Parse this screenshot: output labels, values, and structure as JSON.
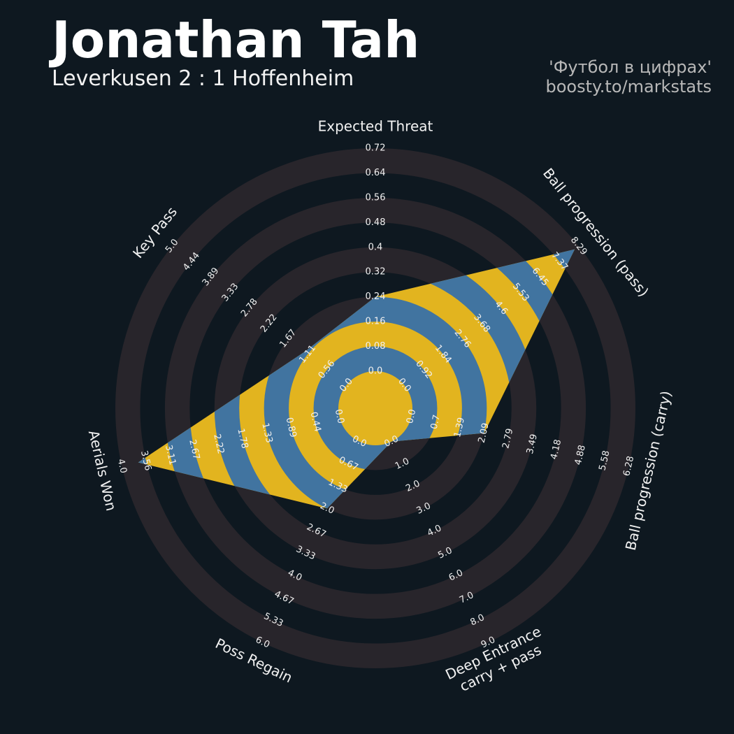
{
  "chart_data": {
    "type": "radar",
    "title": "Jonathan Tah",
    "subtitle": "Leverkusen 2 : 1 Hoffenheim",
    "credit": [
      "'Футбол в цифрах'",
      "boosty.to/markstats"
    ],
    "ring_color": "#28252b",
    "polygon_colors": [
      "#e2b41f",
      "#4174a0"
    ],
    "params": [
      {
        "label": [
          "Expected Threat"
        ],
        "value": 0.24,
        "ticks": [
          {
            "value": 0,
            "label": "0.0"
          },
          0.08,
          0.16,
          0.24,
          0.32,
          0.4,
          0.48,
          0.56,
          0.64,
          0.72
        ]
      },
      {
        "label": [
          "Ball progression (pass)"
        ],
        "value": 8.1,
        "ticks": [
          {
            "value": 0,
            "label": "0.0"
          },
          0.92,
          1.84,
          2.76,
          3.68,
          4.6,
          5.53,
          6.45,
          7.37,
          8.29
        ]
      },
      {
        "label": [
          "Ball progression (carry)"
        ],
        "value": 2.1,
        "ticks": [
          {
            "value": 0,
            "label": "0.0"
          },
          0.7,
          1.39,
          2.09,
          2.79,
          3.49,
          4.18,
          4.88,
          5.58,
          6.28
        ]
      },
      {
        "label": [
          "Deep Entrance",
          "carry + pass"
        ],
        "value": 0,
        "ticks": [
          {
            "value": 0,
            "label": "0.0"
          },
          {
            "value": 1,
            "label": "1.0"
          },
          {
            "value": 2,
            "label": "2.0"
          },
          {
            "value": 3,
            "label": "3.0"
          },
          {
            "value": 4,
            "label": "4.0"
          },
          {
            "value": 5,
            "label": "5.0"
          },
          {
            "value": 6,
            "label": "6.0"
          },
          {
            "value": 7,
            "label": "7.0"
          },
          {
            "value": 8,
            "label": "8.0"
          },
          {
            "value": 9,
            "label": "9.0"
          }
        ]
      },
      {
        "label": [
          "Poss Regain"
        ],
        "value": 2.0,
        "ticks": [
          {
            "value": 0,
            "label": "0.0"
          },
          0.67,
          1.33,
          {
            "value": 2,
            "label": "2.0"
          },
          2.67,
          3.33,
          {
            "value": 4,
            "label": "4.0"
          },
          4.67,
          5.33,
          {
            "value": 6,
            "label": "6.0"
          }
        ]
      },
      {
        "label": [
          "Aerials Won"
        ],
        "value": 3.7,
        "ticks": [
          {
            "value": 0,
            "label": "0.0"
          },
          0.44,
          0.89,
          1.33,
          1.78,
          2.22,
          2.67,
          3.11,
          3.56,
          {
            "value": 4,
            "label": "4.0"
          }
        ]
      },
      {
        "label": [
          "Key Pass"
        ],
        "value": 1.2,
        "ticks": [
          {
            "value": 0,
            "label": "0.0"
          },
          0.56,
          1.11,
          1.67,
          2.22,
          2.78,
          3.33,
          3.89,
          4.44,
          {
            "value": 5,
            "label": "5.0"
          }
        ]
      }
    ]
  }
}
